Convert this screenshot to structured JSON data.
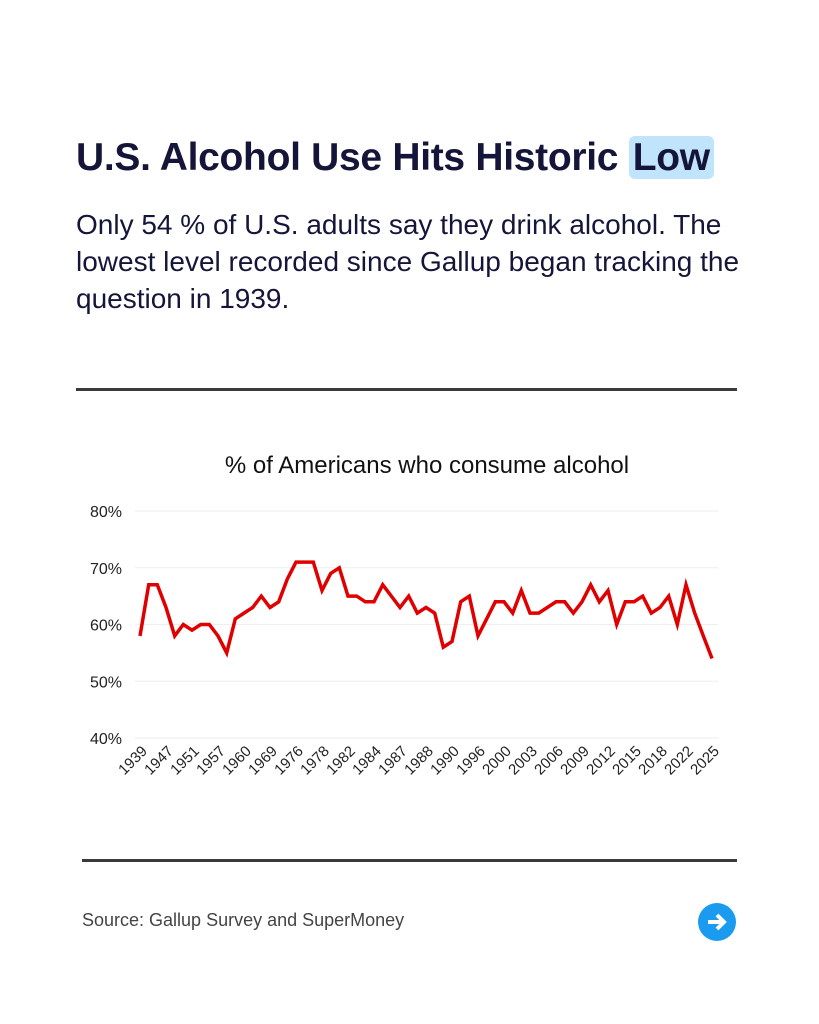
{
  "header": {
    "title_prefix": "U.S. Alcohol Use Hits Historic",
    "title_highlight": "Low",
    "subtitle": "Only 54 % of U.S. adults say they drink alcohol. The lowest level recorded since Gallup began tracking the question in 1939."
  },
  "footer": {
    "source": "Source: Gallup Survey and SuperMoney",
    "next_icon": "arrow-right-circle-icon"
  },
  "colors": {
    "line": "#e00000",
    "highlight": "#bfe4fb",
    "accent": "#1a9bf0",
    "text": "#15153a"
  },
  "chart_data": {
    "type": "line",
    "title": "% of Americans who consume alcohol",
    "xlabel": "",
    "ylabel": "",
    "ylim": [
      40,
      80
    ],
    "yticks": [
      "40%",
      "50%",
      "60%",
      "70%",
      "80%"
    ],
    "ytick_values": [
      40,
      50,
      60,
      70,
      80
    ],
    "xtick_labels": [
      "1939",
      "1947",
      "1951",
      "1957",
      "1960",
      "1969",
      "1976",
      "1978",
      "1982",
      "1984",
      "1987",
      "1988",
      "1990",
      "1996",
      "2000",
      "2003",
      "2006",
      "2009",
      "2012",
      "2015",
      "2018",
      "2022",
      "2025"
    ],
    "grid": true,
    "values": [
      58,
      67,
      67,
      63,
      58,
      60,
      59,
      60,
      60,
      58,
      55,
      61,
      62,
      63,
      65,
      63,
      64,
      68,
      71,
      71,
      71,
      66,
      69,
      70,
      65,
      65,
      64,
      64,
      67,
      65,
      63,
      65,
      62,
      63,
      62,
      56,
      57,
      64,
      65,
      58,
      61,
      64,
      64,
      62,
      66,
      62,
      62,
      63,
      64,
      64,
      62,
      64,
      67,
      64,
      66,
      60,
      64,
      64,
      65,
      62,
      63,
      65,
      60,
      67,
      62,
      58,
      54
    ]
  }
}
